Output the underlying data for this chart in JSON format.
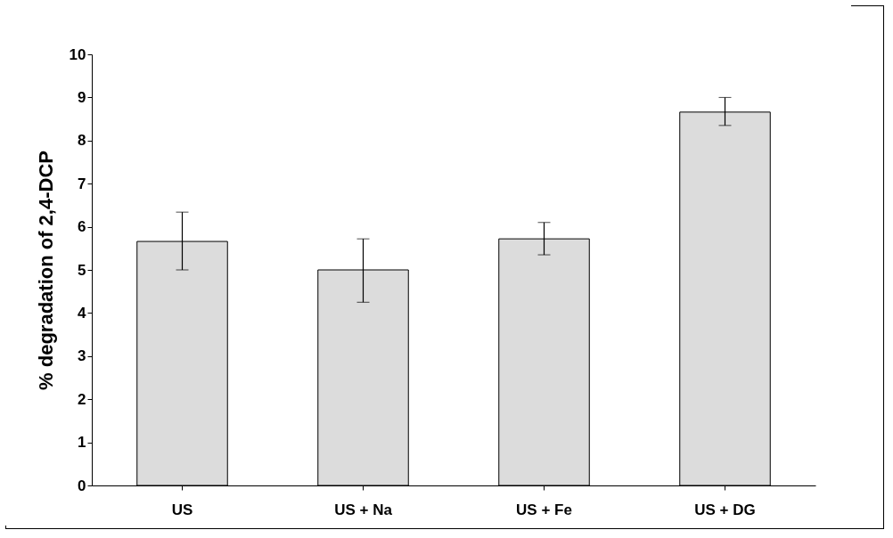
{
  "chart_data": {
    "type": "bar",
    "ylabel": "% degradation of 2,4-DCP",
    "categories": [
      "US",
      "US + Na",
      "US + Fe",
      "US + DG"
    ],
    "values": [
      5.66,
      5.0,
      5.72,
      8.66
    ],
    "errors": [
      [
        5.0,
        6.34
      ],
      [
        4.25,
        5.72
      ],
      [
        5.35,
        6.1
      ],
      [
        8.35,
        9.0
      ]
    ],
    "color": "#dcdcdc",
    "ylim": [
      0,
      10
    ],
    "yticks": [
      0,
      1,
      2,
      3,
      4,
      5,
      6,
      7,
      8,
      9,
      10
    ],
    "grid": false
  }
}
